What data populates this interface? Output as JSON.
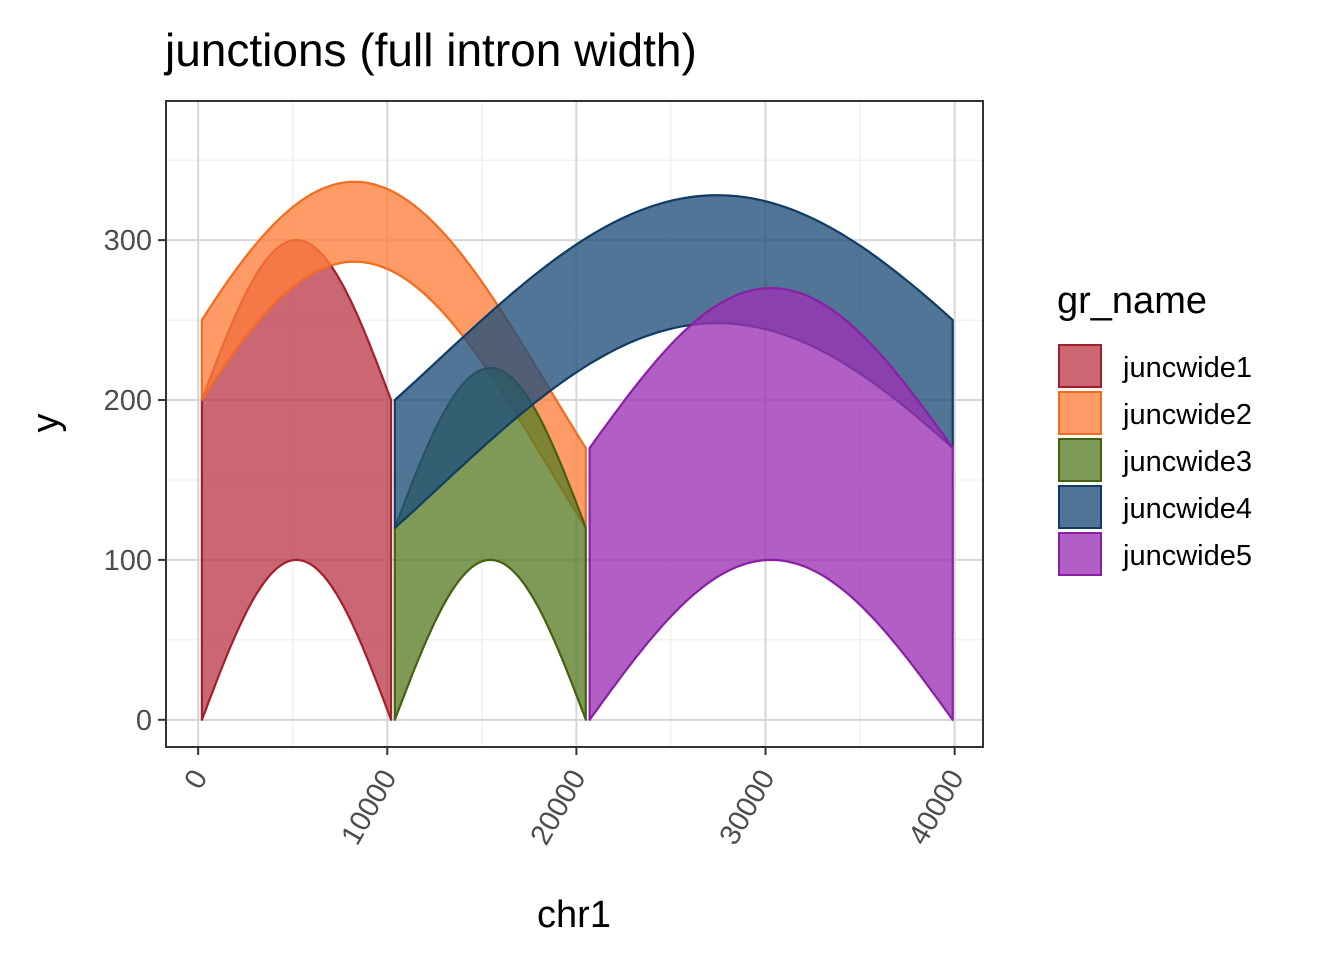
{
  "chart_data": {
    "type": "area",
    "title": "junctions (full intron width)",
    "xlabel": "chr1",
    "ylabel": "y",
    "xlim": [
      -1700,
      41500
    ],
    "ylim": [
      -17,
      387
    ],
    "x_ticks": [
      0,
      10000,
      20000,
      30000,
      40000
    ],
    "x_tick_labels": [
      "0",
      "10000",
      "20000",
      "30000",
      "40000"
    ],
    "x_minor": [
      5000,
      15000,
      25000,
      35000
    ],
    "y_ticks": [
      0,
      100,
      200,
      300
    ],
    "y_tick_labels": [
      "0",
      "100",
      "200",
      "300"
    ],
    "y_minor": [
      50,
      150,
      250,
      350
    ],
    "grid": true,
    "legend": {
      "title": "gr_name",
      "position": "right"
    },
    "series": [
      {
        "name": "juncwide1",
        "fill": "#BC3C4C",
        "stroke": "#A51E2C",
        "x_start": 200,
        "x_end": 10200,
        "y_start": 0,
        "y_end": 0,
        "thickness": 200,
        "peak": 100
      },
      {
        "name": "juncwide2",
        "fill": "#FF7F3B",
        "stroke": "#F26B1F",
        "x_start": 200,
        "x_end": 20500,
        "y_start": 200,
        "y_end": 120,
        "thickness": 50,
        "peak": 120
      },
      {
        "name": "juncwide3",
        "fill": "#5A7D26",
        "stroke": "#446110",
        "x_start": 10400,
        "x_end": 20500,
        "y_start": 0,
        "y_end": 0,
        "thickness": 120,
        "peak": 100
      },
      {
        "name": "juncwide4",
        "fill": "#1F4E7A",
        "stroke": "#103C63",
        "x_start": 10400,
        "x_end": 39900,
        "y_start": 120,
        "y_end": 170,
        "thickness": 80,
        "peak": 100
      },
      {
        "name": "juncwide5",
        "fill": "#9B32B4",
        "stroke": "#8A1FA5",
        "x_start": 20700,
        "x_end": 39900,
        "y_start": 0,
        "y_end": 0,
        "thickness": 170,
        "peak": 100
      }
    ]
  }
}
